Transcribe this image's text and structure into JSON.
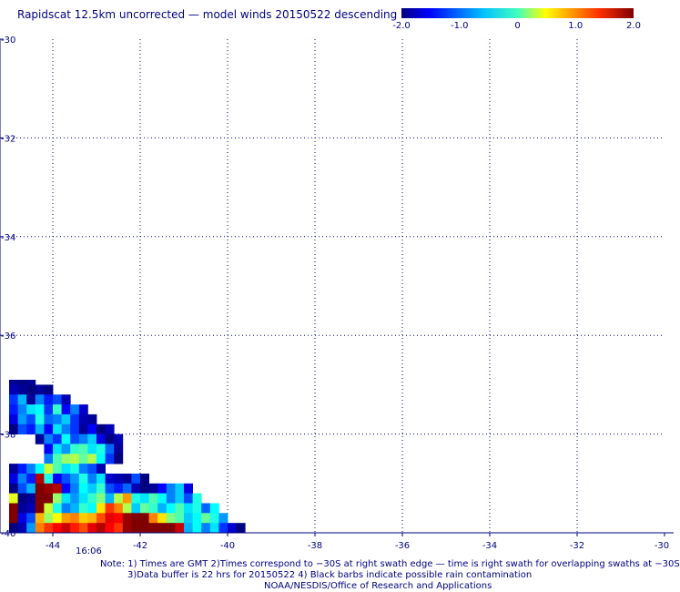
{
  "chart_data": {
    "type": "heatmap",
    "title": "Rapidscat 12.5km uncorrected — model winds 20150522 descending",
    "x_ticks": [
      "-44",
      "-42",
      "-40",
      "-38",
      "-36",
      "-34",
      "-32",
      "-30"
    ],
    "y_ticks": [
      "-30",
      "-32",
      "-34",
      "-36",
      "-38",
      "-40"
    ],
    "xlim": [
      -45,
      -30
    ],
    "ylim": [
      -40,
      -30
    ],
    "grid": true,
    "colorbar": {
      "vmin": -2.0,
      "vmax": 2.0,
      "tick_labels": [
        "-2.0",
        "-1.0",
        "0",
        "1.0",
        "2.0"
      ],
      "colormap": "jet",
      "placement": "top-right"
    },
    "time_label": "16:06",
    "time_label_color": "#8b0000",
    "grid_resolution_deg": 0.2,
    "rows": [
      {
        "lat": -37.0,
        "lon_start": -44.9,
        "values": [
          -1.9,
          -2.0,
          -1.9
        ]
      },
      {
        "lat": -37.1,
        "lon_start": -44.9,
        "values": [
          -1.8,
          -1.9,
          -2.0,
          -1.9,
          -2.0
        ]
      },
      {
        "lat": -37.3,
        "lon_start": -44.9,
        "values": [
          -1.3,
          -0.8,
          -1.9,
          -1.0,
          -1.4,
          -1.2,
          -1.8
        ]
      },
      {
        "lat": -37.5,
        "lon_start": -44.9,
        "values": [
          -1.4,
          -1.0,
          -0.6,
          -0.5,
          -1.3,
          -0.3,
          -1.5,
          -1.0,
          -1.7
        ]
      },
      {
        "lat": -37.7,
        "lon_start": -44.9,
        "values": [
          -1.6,
          -0.9,
          -1.2,
          -0.4,
          -1.1,
          -1.0,
          -0.7,
          -1.3,
          -1.8,
          -1.9
        ]
      },
      {
        "lat": -37.9,
        "lon_start": -44.9,
        "values": [
          -2.0,
          -1.2,
          -1.4,
          -0.8,
          -1.5,
          -0.6,
          -1.0,
          -1.3,
          -1.9,
          -1.5,
          -2.0,
          -1.8
        ]
      },
      {
        "lat": -38.1,
        "lon_start": -44.3,
        "values": [
          -1.9,
          -1.0,
          -1.3,
          -0.5,
          -1.2,
          -1.0,
          -0.7,
          -1.6,
          -2.0,
          -1.8
        ]
      },
      {
        "lat": -38.3,
        "lon_start": -44.1,
        "values": [
          -1.5,
          -0.6,
          -0.9,
          -0.3,
          -0.2,
          -0.6,
          -0.4,
          -1.1,
          -1.9
        ]
      },
      {
        "lat": -38.5,
        "lon_start": -44.1,
        "values": [
          -1.0,
          -0.2,
          0.1,
          0.2,
          -0.1,
          0.2,
          -0.5,
          -1.3,
          -2.0
        ]
      },
      {
        "lat": -38.7,
        "lon_start": -44.9,
        "values": [
          -1.9,
          -1.4,
          -1.0,
          -0.5,
          0.3,
          -0.2,
          -0.6,
          -0.4,
          -1.0,
          -1.2,
          -1.8
        ]
      },
      {
        "lat": -38.9,
        "lon_start": -44.9,
        "values": [
          -1.6,
          -1.0,
          -1.4,
          1.8,
          -0.4,
          -1.5,
          -1.2,
          -0.9,
          -0.4,
          -1.0,
          -0.6,
          -1.7,
          -1.8,
          -1.9,
          -1.2,
          -2.0
        ]
      },
      {
        "lat": -39.1,
        "lon_start": -44.9,
        "values": [
          -2.0,
          -1.2,
          -0.8,
          2.0,
          1.9,
          1.8,
          -1.5,
          -1.0,
          -0.5,
          -0.7,
          -0.3,
          -1.2,
          -1.4,
          -1.1,
          -1.8,
          -2.0,
          -1.9,
          -1.5,
          -1.0,
          -0.7,
          -1.6
        ]
      },
      {
        "lat": -39.3,
        "lon_start": -44.9,
        "values": [
          0.4,
          -2.0,
          -1.9,
          2.0,
          2.0,
          0.1,
          -0.6,
          -0.9,
          -0.6,
          -0.3,
          0.0,
          -0.8,
          0.2,
          0.9,
          -0.4,
          -0.6,
          -0.2,
          -0.5,
          -1.0,
          -0.7,
          -1.2,
          -0.4
        ]
      },
      {
        "lat": -39.5,
        "lon_start": -44.9,
        "values": [
          2.0,
          -1.9,
          -1.8,
          2.0,
          0.3,
          -0.4,
          -1.0,
          -0.8,
          -0.3,
          -0.5,
          0.6,
          1.3,
          1.0,
          0.2,
          -0.7,
          -0.1,
          -0.3,
          -0.8,
          -0.5,
          -0.2,
          -0.6,
          -0.4,
          -1.1,
          -0.5
        ]
      },
      {
        "lat": -39.7,
        "lon_start": -44.9,
        "values": [
          2.0,
          -1.6,
          -1.2,
          0.8,
          0.1,
          0.5,
          0.9,
          1.0,
          0.7,
          0.8,
          1.2,
          1.6,
          1.5,
          1.9,
          2.0,
          2.0,
          1.0,
          0.6,
          0.0,
          -0.2,
          -0.7,
          -0.5,
          -0.1,
          -0.4,
          -0.9
        ]
      },
      {
        "lat": -39.9,
        "lon_start": -44.9,
        "values": [
          -2.0,
          -1.8,
          -0.9,
          1.0,
          1.3,
          1.5,
          1.7,
          1.4,
          1.2,
          1.6,
          1.8,
          1.5,
          1.3,
          1.9,
          2.0,
          2.0,
          2.0,
          2.0,
          2.0,
          1.7,
          -0.8,
          -0.5,
          -1.0,
          -0.6,
          -1.3,
          -1.7,
          -2.0
        ]
      }
    ]
  },
  "notes": {
    "line1": "Note: 1) Times are GMT 2)Times correspond to −30S at right swath edge — time is right swath for overlapping swaths at −30S",
    "line2": "3)Data buffer is 22 hrs for 20150522 4) Black barbs indicate possible rain contamination",
    "line3": "NOAA/NESDIS/Office of Research and Applications"
  }
}
